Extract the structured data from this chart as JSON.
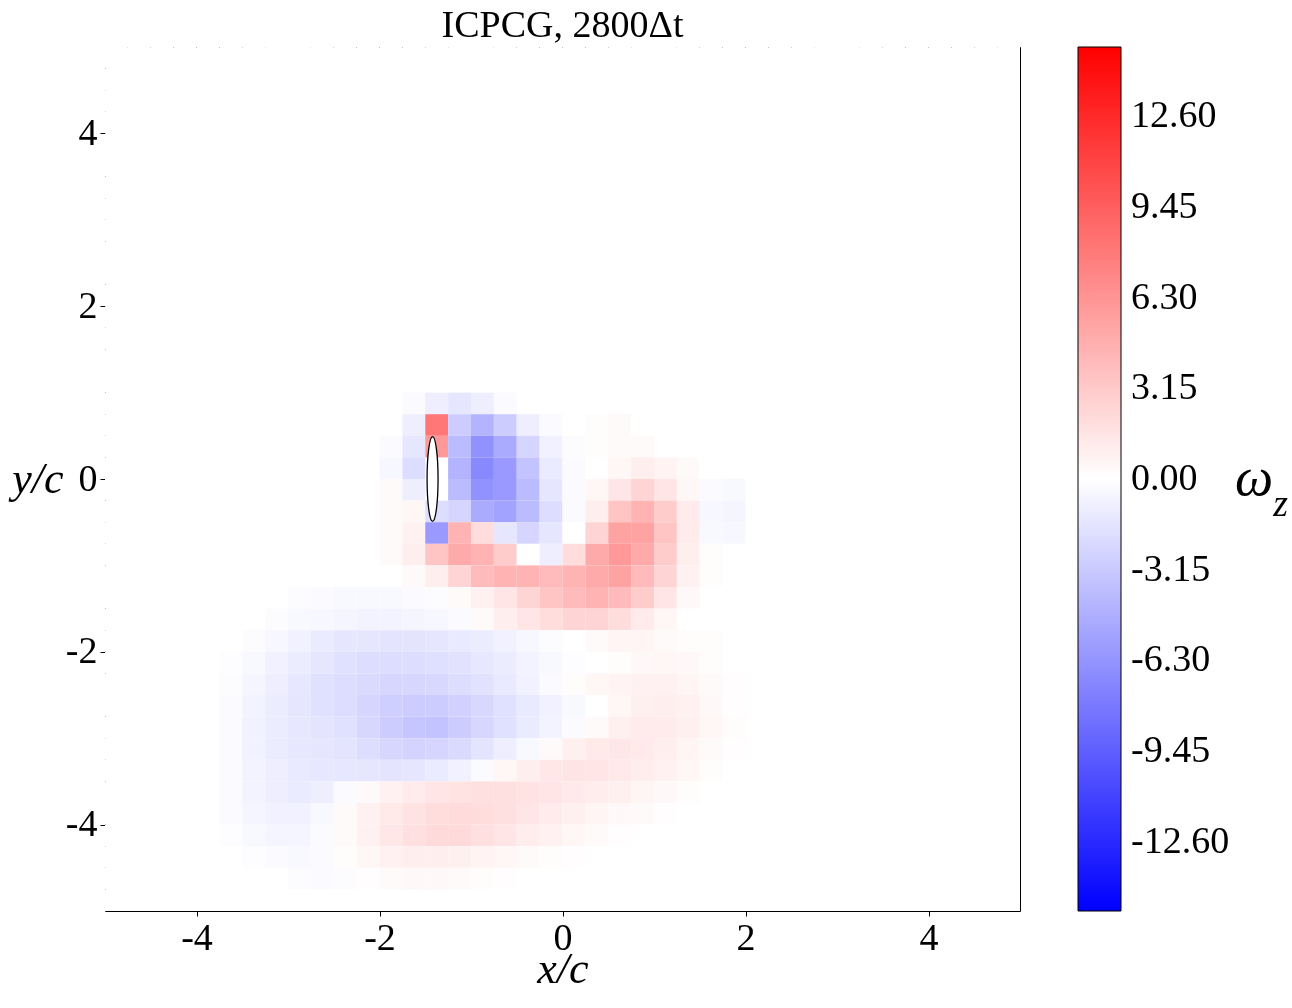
{
  "chart_data": {
    "type": "heatmap",
    "title": "ICPCG, 2800Δt",
    "xlabel": "x/c",
    "ylabel": "y/c",
    "clabel": "ω$_{z}$",
    "xlim": [
      -5,
      5
    ],
    "ylim": [
      -5,
      5
    ],
    "xticks": [
      -4,
      -2,
      0,
      2,
      4
    ],
    "yticks": [
      -4,
      -2,
      0,
      2,
      4
    ],
    "clim": [
      -15,
      15
    ],
    "cticks": [
      {
        "value": -12.6,
        "label": "-12.60"
      },
      -9.45,
      {
        "value": -6.3,
        "label": "-6.30"
      },
      -3.15,
      {
        "value": 0,
        "label": "0.00"
      },
      3.15,
      {
        "value": 6.3,
        "label": "6.30"
      },
      9.45,
      {
        "value": 12.6,
        "label": "12.60"
      }
    ],
    "x": [
      -4.875,
      -4.625,
      -4.375,
      -4.125,
      -3.875,
      -3.625,
      -3.375,
      -3.125,
      -2.875,
      -2.625,
      -2.375,
      -2.125,
      -1.875,
      -1.625,
      -1.375,
      -1.125,
      -0.875,
      -0.625,
      -0.375,
      -0.125,
      0.125,
      0.375,
      0.625,
      0.875,
      1.125,
      1.375,
      1.625,
      1.875,
      2.125,
      2.375,
      2.625,
      2.875,
      3.125,
      3.375,
      3.625,
      3.875,
      4.125,
      4.375,
      4.625,
      4.875
    ],
    "y": [
      4.875,
      4.625,
      4.375,
      4.125,
      3.875,
      3.625,
      3.375,
      3.125,
      2.875,
      2.625,
      2.375,
      2.125,
      1.875,
      1.625,
      1.375,
      1.125,
      0.875,
      0.625,
      0.375,
      0.125,
      -0.125,
      -0.375,
      -0.625,
      -0.875,
      -1.125,
      -1.375,
      -1.625,
      -1.875,
      -2.125,
      -2.375,
      -2.625,
      -2.875,
      -3.125,
      -3.375,
      -3.625,
      -3.875,
      -4.125,
      -4.375,
      -4.625,
      -4.875
    ],
    "cells": [
      [
        0,
        0,
        0,
        0,
        0,
        0,
        0,
        0,
        0,
        0,
        0,
        0,
        0,
        0,
        0,
        0,
        0,
        0,
        0,
        0,
        0,
        0,
        0,
        0,
        0,
        0,
        0,
        0,
        0,
        0,
        0,
        0,
        0,
        0,
        0,
        0,
        0,
        0,
        0,
        0
      ],
      [
        0,
        0,
        0,
        0,
        0,
        0,
        0,
        0,
        0,
        0,
        0,
        0,
        0,
        0,
        0,
        0,
        0,
        0,
        0,
        0,
        0,
        0,
        0,
        0,
        0,
        0,
        0,
        0,
        0,
        0,
        0,
        0,
        0,
        0,
        0,
        0,
        0,
        0,
        0,
        0
      ],
      [
        0,
        0,
        0,
        0,
        0,
        0,
        0,
        0,
        0,
        0,
        0,
        0,
        0,
        0,
        0,
        0,
        0,
        0,
        0,
        0,
        0,
        0,
        0,
        0,
        0,
        0,
        0,
        0,
        0,
        0,
        0,
        0,
        0,
        0,
        0,
        0,
        0,
        0,
        0,
        0
      ],
      [
        0,
        0,
        0,
        0,
        0,
        0,
        0,
        0,
        0,
        0,
        0,
        0,
        0,
        0,
        0,
        0,
        0,
        0,
        0,
        0,
        0,
        0,
        0,
        0,
        0,
        0,
        0,
        0,
        0,
        0,
        0,
        0,
        0,
        0,
        0,
        0,
        0,
        0,
        0,
        0
      ],
      [
        0,
        0,
        0,
        0,
        0,
        0,
        0,
        0,
        0,
        0,
        0,
        0,
        0,
        0,
        0,
        0,
        0,
        0,
        0,
        0,
        0,
        0,
        0,
        0,
        0,
        0,
        0,
        0,
        0,
        0,
        0,
        0,
        0,
        0,
        0,
        0,
        0,
        0,
        0,
        0
      ],
      [
        0,
        0,
        0,
        0,
        0,
        0,
        0,
        0,
        0,
        0,
        0,
        0,
        0,
        0,
        0,
        0,
        0,
        0,
        0,
        0,
        0,
        0,
        0,
        0,
        0,
        0,
        0,
        0,
        0,
        0,
        0,
        0,
        0,
        0,
        0,
        0,
        0,
        0,
        0,
        0
      ],
      [
        0,
        0,
        0,
        0,
        0,
        0,
        0,
        0,
        0,
        0,
        0,
        0,
        0,
        0,
        0,
        0,
        0,
        0,
        0,
        0,
        0,
        0,
        0,
        0,
        0,
        0,
        0,
        0,
        0,
        0,
        0,
        0,
        0,
        0,
        0,
        0,
        0,
        0,
        0,
        0
      ],
      [
        0,
        0,
        0,
        0,
        0,
        0,
        0,
        0,
        0,
        0,
        0,
        0,
        0,
        0,
        0,
        0,
        0,
        0,
        0,
        0,
        0,
        0,
        0,
        0,
        0,
        0,
        0,
        0,
        0,
        0,
        0,
        0,
        0,
        0,
        0,
        0,
        0,
        0,
        0,
        0
      ],
      [
        0,
        0,
        0,
        0,
        0,
        0,
        0,
        0,
        0,
        0,
        0,
        0,
        0,
        0,
        0,
        0,
        0,
        0,
        0,
        0,
        0,
        0,
        0,
        0,
        0,
        0,
        0,
        0,
        0,
        0,
        0,
        0,
        0,
        0,
        0,
        0,
        0,
        0,
        0,
        0
      ],
      [
        0,
        0,
        0,
        0,
        0,
        0,
        0,
        0,
        0,
        0,
        0,
        0,
        0,
        0,
        0,
        0,
        0,
        0,
        0,
        0,
        0,
        0,
        0,
        0,
        0,
        0,
        0,
        0,
        0,
        0,
        0,
        0,
        0,
        0,
        0,
        0,
        0,
        0,
        0,
        0
      ],
      [
        0,
        0,
        0,
        0,
        0,
        0,
        0,
        0,
        0,
        0,
        0,
        0,
        0,
        0,
        0,
        0,
        0,
        0,
        0,
        0,
        0,
        0,
        0,
        0,
        0,
        0,
        0,
        0,
        0,
        0,
        0,
        0,
        0,
        0,
        0,
        0,
        0,
        0,
        0,
        0
      ],
      [
        0,
        0,
        0,
        0,
        0,
        0,
        0,
        0,
        0,
        0,
        0,
        0,
        0,
        0,
        0,
        0,
        0,
        0,
        0,
        0,
        0,
        0,
        0,
        0,
        0,
        0,
        0,
        0,
        0,
        0,
        0,
        0,
        0,
        0,
        0,
        0,
        0,
        0,
        0,
        0
      ],
      [
        0,
        0,
        0,
        0,
        0,
        0,
        0,
        0,
        0,
        0,
        0,
        0,
        0,
        0,
        0,
        0,
        0,
        0,
        0,
        0,
        0,
        0,
        0,
        0,
        0,
        0,
        0,
        0,
        0,
        0,
        0,
        0,
        0,
        0,
        0,
        0,
        0,
        0,
        0,
        0
      ],
      [
        0,
        0,
        0,
        0,
        0,
        0,
        0,
        0,
        0,
        0,
        0,
        0,
        0,
        0,
        0,
        0,
        0,
        0,
        0,
        0,
        0,
        0,
        0,
        0,
        0,
        0,
        0,
        0,
        0,
        0,
        0,
        0,
        0,
        0,
        0,
        0,
        0,
        0,
        0,
        0
      ],
      [
        0,
        0,
        0,
        0,
        0,
        0,
        0,
        0,
        0,
        0,
        0,
        0,
        0,
        0,
        0,
        0,
        0,
        0,
        0,
        0,
        0,
        0,
        0,
        0,
        0,
        0,
        0,
        0,
        0,
        0,
        0,
        0,
        0,
        0,
        0,
        0,
        0,
        0,
        0,
        0
      ],
      [
        0,
        0,
        0,
        0,
        0,
        0,
        0,
        0,
        0,
        0,
        0,
        0,
        0,
        0,
        0,
        0,
        0,
        0,
        0,
        0,
        0,
        0,
        0,
        0,
        0,
        0,
        0,
        0,
        0,
        0,
        0,
        0,
        0,
        0,
        0,
        0,
        0,
        0,
        0,
        0
      ],
      [
        0,
        0,
        0,
        0,
        0,
        0,
        0,
        0,
        0,
        0,
        0,
        0,
        0,
        -0.3,
        -1,
        -1.5,
        -1,
        -0.3,
        0,
        0,
        0,
        0,
        0,
        0,
        0,
        0,
        0,
        0,
        0,
        0,
        0,
        0,
        0,
        0,
        0,
        0,
        0,
        0,
        0,
        0
      ],
      [
        0,
        0,
        0,
        0,
        0,
        0,
        0,
        0,
        0,
        0,
        0,
        0,
        0,
        -1,
        8,
        -3,
        -4.5,
        -3,
        -1,
        -0.3,
        0,
        0.2,
        0.3,
        0,
        0,
        0,
        0,
        0,
        0,
        0,
        0,
        0,
        0,
        0,
        0,
        0,
        0,
        0,
        0,
        0
      ],
      [
        0,
        0,
        0,
        0,
        0,
        0,
        0,
        0,
        0,
        0,
        0,
        0,
        -0.3,
        -1.5,
        6,
        -4,
        -6.5,
        -5,
        -2.5,
        -0.8,
        -0.2,
        0.2,
        0.3,
        0.3,
        0,
        0,
        0,
        0,
        0,
        0,
        0,
        0,
        0,
        0,
        0,
        0,
        0,
        0,
        0,
        0
      ],
      [
        0,
        0,
        0,
        0,
        0,
        0,
        0,
        0,
        0,
        0,
        0,
        0,
        -0.5,
        -2,
        null,
        -4.5,
        -7,
        -6,
        -3.5,
        -1.2,
        -0.3,
        0,
        0.5,
        1,
        0.7,
        0.3,
        0,
        0,
        0,
        0,
        0,
        0,
        0,
        0,
        0,
        0,
        0,
        0,
        0,
        0
      ],
      [
        0,
        0,
        0,
        0,
        0,
        0,
        0,
        0,
        0,
        0,
        0,
        0,
        0.3,
        -1,
        null,
        -4,
        -6.5,
        -6,
        -4,
        -1.5,
        -0.3,
        0.5,
        1.5,
        2.5,
        1.5,
        0.5,
        -0.3,
        -0.4,
        0,
        0,
        0,
        0,
        0,
        0,
        0,
        0,
        0,
        0,
        0,
        0
      ],
      [
        0,
        0,
        0,
        0,
        0,
        0,
        0,
        0,
        0,
        0,
        0,
        0,
        0.3,
        0.5,
        -2,
        -2.5,
        -5,
        -5.5,
        -4,
        -2,
        -0.3,
        1,
        3.5,
        4.5,
        3,
        1.2,
        -0.5,
        -0.6,
        0,
        0,
        0,
        0,
        0,
        0,
        0,
        0,
        0,
        0,
        0,
        0
      ],
      [
        0,
        0,
        0,
        0,
        0,
        0,
        0,
        0,
        0,
        0,
        0,
        0,
        0.3,
        0.8,
        -6,
        4.5,
        2,
        -1.5,
        -2.5,
        -1.5,
        0,
        2.5,
        5.5,
        5.5,
        3.5,
        1.2,
        -0.4,
        -0.5,
        0,
        0,
        0,
        0,
        0,
        0,
        0,
        0,
        0,
        0,
        0,
        0
      ],
      [
        0,
        0,
        0,
        0,
        0,
        0,
        0,
        0,
        0,
        0,
        0,
        0,
        0.3,
        1,
        3.5,
        5,
        4.5,
        3,
        0,
        -1,
        2,
        5,
        6,
        5,
        3,
        1,
        0.2,
        0,
        0,
        0,
        0,
        0,
        0,
        0,
        0,
        0,
        0,
        0,
        0,
        0
      ],
      [
        0,
        0,
        0,
        0,
        0,
        0,
        0,
        0,
        0,
        0,
        0,
        0,
        0,
        0.3,
        1,
        2.5,
        4,
        4.5,
        4.5,
        4,
        4.5,
        5,
        5.5,
        4,
        2.5,
        0.8,
        0.2,
        0,
        0,
        0,
        0,
        0,
        0,
        0,
        0,
        0,
        0,
        0,
        0,
        0
      ],
      [
        0,
        0,
        0,
        0,
        0,
        0,
        0,
        0,
        -0.2,
        -0.3,
        -0.4,
        -0.4,
        -0.4,
        -0.3,
        -0.2,
        0.3,
        0.8,
        1.5,
        2.5,
        3.5,
        4,
        4.5,
        4,
        3,
        1.5,
        0.4,
        0,
        0,
        0,
        0,
        0,
        0,
        0,
        0,
        0,
        0,
        0,
        0,
        0,
        0
      ],
      [
        0,
        0,
        0,
        0,
        0,
        0,
        0,
        -0.2,
        -0.4,
        -0.5,
        -0.6,
        -0.7,
        -0.7,
        -0.6,
        -0.5,
        -0.3,
        0.3,
        1,
        1.5,
        2,
        2.5,
        2.5,
        2,
        1.2,
        0.5,
        0,
        0,
        0,
        0,
        0,
        0,
        0,
        0,
        0,
        0,
        0,
        0,
        0,
        0,
        0
      ],
      [
        0,
        0,
        0,
        0,
        0,
        0,
        -0.2,
        -0.5,
        -0.8,
        -1.2,
        -1.5,
        -1.5,
        -1.6,
        -1.6,
        -1.5,
        -1.3,
        -1.1,
        -0.8,
        -0.5,
        -0.2,
        0,
        0.3,
        0.6,
        0.6,
        0.3,
        0.2,
        0.2,
        0,
        0,
        0,
        0,
        0,
        0,
        0,
        0,
        0,
        0,
        0,
        0,
        0
      ],
      [
        0,
        0,
        0,
        0,
        0,
        -0.1,
        -0.4,
        -0.8,
        -1.1,
        -1.5,
        -1.8,
        -2,
        -2,
        -2,
        -1.9,
        -1.7,
        -1.4,
        -1.1,
        -0.7,
        -0.4,
        -0.1,
        0,
        0.2,
        0.4,
        0.5,
        0.4,
        0.2,
        0,
        0,
        0,
        0,
        0,
        0,
        0,
        0,
        0,
        0,
        0,
        0,
        0
      ],
      [
        0,
        0,
        0,
        0,
        0,
        -0.2,
        -0.6,
        -1,
        -1.4,
        -1.8,
        -2,
        -2.2,
        -2.4,
        -2.4,
        -2.3,
        -2,
        -1.7,
        -1.3,
        -0.8,
        -0.3,
        0.2,
        0.5,
        0.7,
        0.8,
        0.8,
        0.6,
        0.3,
        0.1,
        0,
        0,
        0,
        0,
        0,
        0,
        0,
        0,
        0,
        0,
        0,
        0
      ],
      [
        0,
        0,
        0,
        0,
        0,
        -0.3,
        -0.7,
        -1.1,
        -1.5,
        -1.8,
        -2,
        -2.5,
        -2.8,
        -3,
        -3,
        -2.7,
        -2.3,
        -1.8,
        -1.3,
        -0.8,
        -0.4,
        0,
        0.5,
        0.9,
        1,
        0.8,
        0.4,
        0.1,
        0,
        0,
        0,
        0,
        0,
        0,
        0,
        0,
        0,
        0,
        0,
        0
      ],
      [
        0,
        0,
        0,
        0,
        0,
        -0.3,
        -0.8,
        -1.1,
        -1.4,
        -1.6,
        -1.8,
        -2.4,
        -3,
        -3.4,
        -3.5,
        -3,
        -2.4,
        -1.8,
        -1.2,
        -0.7,
        -0.3,
        0.3,
        0.9,
        1.2,
        1.2,
        0.9,
        0.5,
        0.2,
        0,
        0,
        0,
        0,
        0,
        0,
        0,
        0,
        0,
        0,
        0,
        0
      ],
      [
        0,
        0,
        0,
        0,
        0,
        -0.3,
        -0.8,
        -1.1,
        -1.4,
        -1.5,
        -1.6,
        -2,
        -2.4,
        -2.6,
        -2.5,
        -2.2,
        -1.6,
        -1,
        -0.4,
        0.3,
        0.9,
        1.3,
        1.4,
        1.3,
        1,
        0.6,
        0.3,
        0.1,
        0,
        0,
        0,
        0,
        0,
        0,
        0,
        0,
        0,
        0,
        0,
        0
      ],
      [
        0,
        0,
        0,
        0,
        0,
        -0.3,
        -0.7,
        -1,
        -1.3,
        -1.4,
        -1.4,
        -1.5,
        -1.6,
        -1.5,
        -1.2,
        -0.8,
        -0.3,
        0.5,
        1,
        1.4,
        1.6,
        1.5,
        1.3,
        1.1,
        0.8,
        0.5,
        0.2,
        0,
        0,
        0,
        0,
        0,
        0,
        0,
        0,
        0,
        0,
        0,
        0,
        0
      ],
      [
        0,
        0,
        0,
        0,
        0,
        -0.3,
        -0.7,
        -1,
        -1.2,
        -1,
        -0.3,
        0.3,
        0.8,
        1.2,
        1.5,
        1.7,
        1.8,
        1.8,
        1.7,
        1.5,
        1.3,
        1.1,
        0.9,
        0.6,
        0.4,
        0.2,
        0,
        0,
        0,
        0,
        0,
        0,
        0,
        0,
        0,
        0,
        0,
        0,
        0,
        0
      ],
      [
        0,
        0,
        0,
        0,
        0,
        -0.3,
        -0.6,
        -0.8,
        -0.8,
        -0.4,
        0.3,
        0.8,
        1.3,
        1.7,
        2,
        2.1,
        2,
        1.8,
        1.5,
        1.2,
        0.9,
        0.6,
        0.4,
        0.3,
        0.1,
        0,
        0,
        0,
        0,
        0,
        0,
        0,
        0,
        0,
        0,
        0,
        0,
        0,
        0,
        0
      ],
      [
        0,
        0,
        0,
        0,
        0,
        -0.1,
        -0.4,
        -0.6,
        -0.6,
        -0.3,
        0.3,
        0.8,
        1.4,
        1.9,
        2.2,
        2.2,
        1.9,
        1.5,
        1.1,
        0.8,
        0.5,
        0.3,
        0.1,
        0,
        0,
        0,
        0,
        0,
        0,
        0,
        0,
        0,
        0,
        0,
        0,
        0,
        0,
        0,
        0,
        0
      ],
      [
        0,
        0,
        0,
        0,
        0,
        0,
        -0.1,
        -0.3,
        -0.4,
        -0.3,
        0.2,
        0.5,
        0.8,
        1,
        1,
        0.9,
        0.7,
        0.5,
        0.3,
        0.2,
        0.1,
        0,
        0,
        0,
        0,
        0,
        0,
        0,
        0,
        0,
        0,
        0,
        0,
        0,
        0,
        0,
        0,
        0,
        0,
        0
      ],
      [
        0,
        0,
        0,
        0,
        0,
        0,
        0,
        0,
        -0.2,
        -0.3,
        -0.2,
        0.1,
        0.3,
        0.4,
        0.4,
        0.3,
        0.2,
        0.1,
        0,
        0,
        0,
        0,
        0,
        0,
        0,
        0,
        0,
        0,
        0,
        0,
        0,
        0,
        0,
        0,
        0,
        0,
        0,
        0,
        0,
        0
      ],
      [
        0,
        0,
        0,
        0,
        0,
        0,
        0,
        0,
        0,
        0,
        0,
        0,
        0,
        0,
        0,
        0,
        0,
        0,
        0,
        0,
        0,
        0,
        0,
        0,
        0,
        0,
        0,
        0,
        0,
        0,
        0,
        0,
        0,
        0,
        0,
        0,
        0,
        0,
        0,
        0
      ]
    ]
  }
}
